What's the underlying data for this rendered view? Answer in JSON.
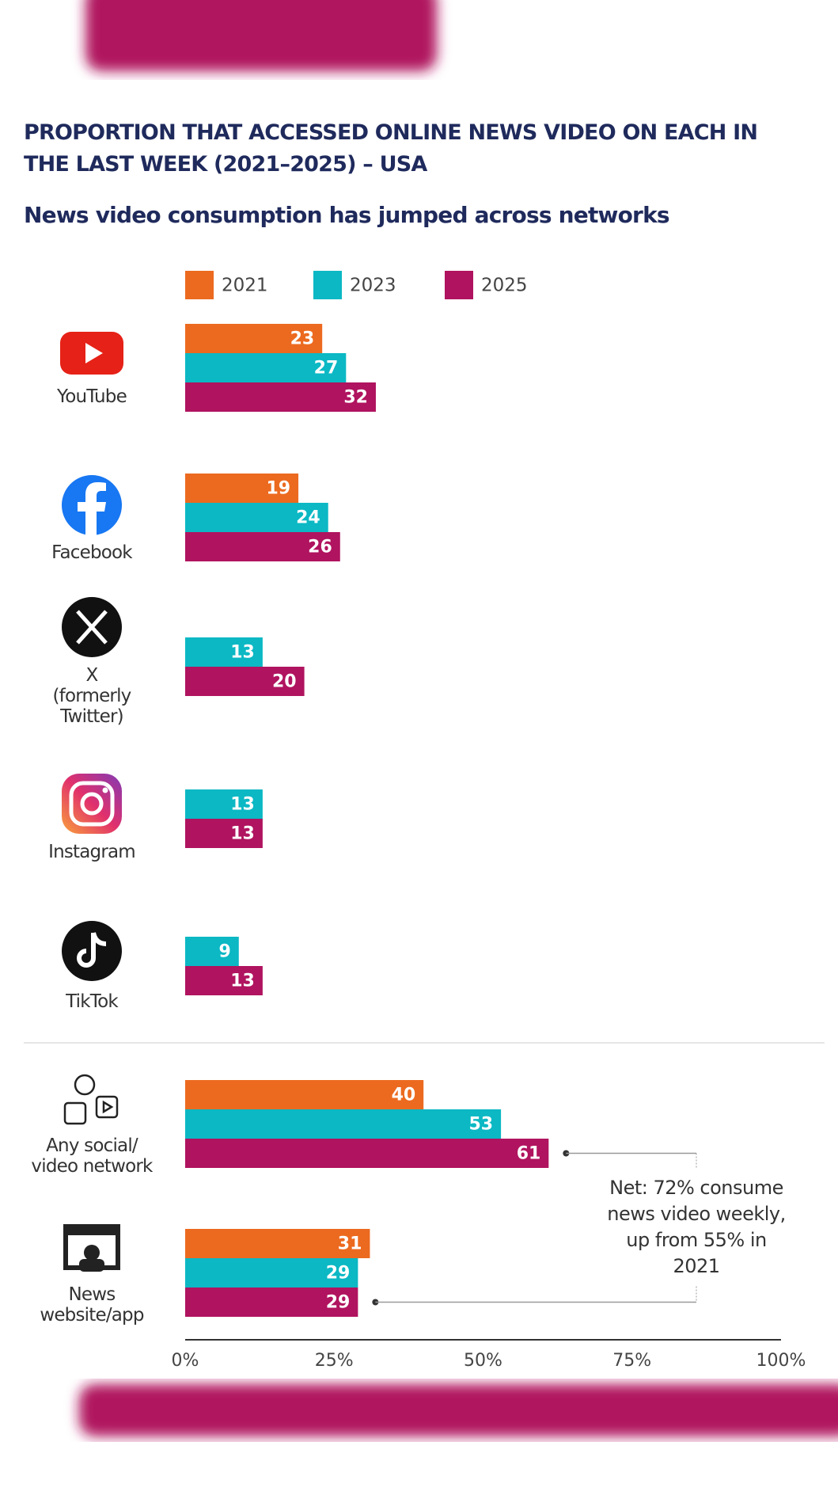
{
  "chart_data": {
    "type": "barh",
    "title": "PROPORTION THAT ACCESSED ONLINE NEWS VIDEO ON EACH IN THE LAST WEEK (2021–2025) – USA",
    "subtitle": "News video consumption has jumped across networks",
    "categories": [
      "YouTube",
      "Facebook",
      "X\n(formerly\nTwitter)",
      "Instagram",
      "TikTok",
      "Any social/\nvideo network",
      "News\nwebsite/app"
    ],
    "series": [
      {
        "name": "2021",
        "color": "#ec6a1f",
        "values": [
          23,
          19,
          null,
          null,
          null,
          40,
          31
        ]
      },
      {
        "name": "2023",
        "color": "#0bb8c4",
        "values": [
          27,
          24,
          13,
          13,
          9,
          53,
          29
        ]
      },
      {
        "name": "2025",
        "color": "#b0135f",
        "values": [
          32,
          26,
          20,
          13,
          13,
          61,
          29
        ]
      }
    ],
    "xlim": [
      0,
      100
    ],
    "xticks": [
      {
        "value": 0,
        "label": "0%"
      },
      {
        "value": 25,
        "label": "25%"
      },
      {
        "value": 50,
        "label": "50%"
      },
      {
        "value": 75,
        "label": "75%"
      },
      {
        "value": 100,
        "label": "100%"
      }
    ],
    "annotation": "Net: 72% consume news video weekly, up from 55% in 2021"
  }
}
